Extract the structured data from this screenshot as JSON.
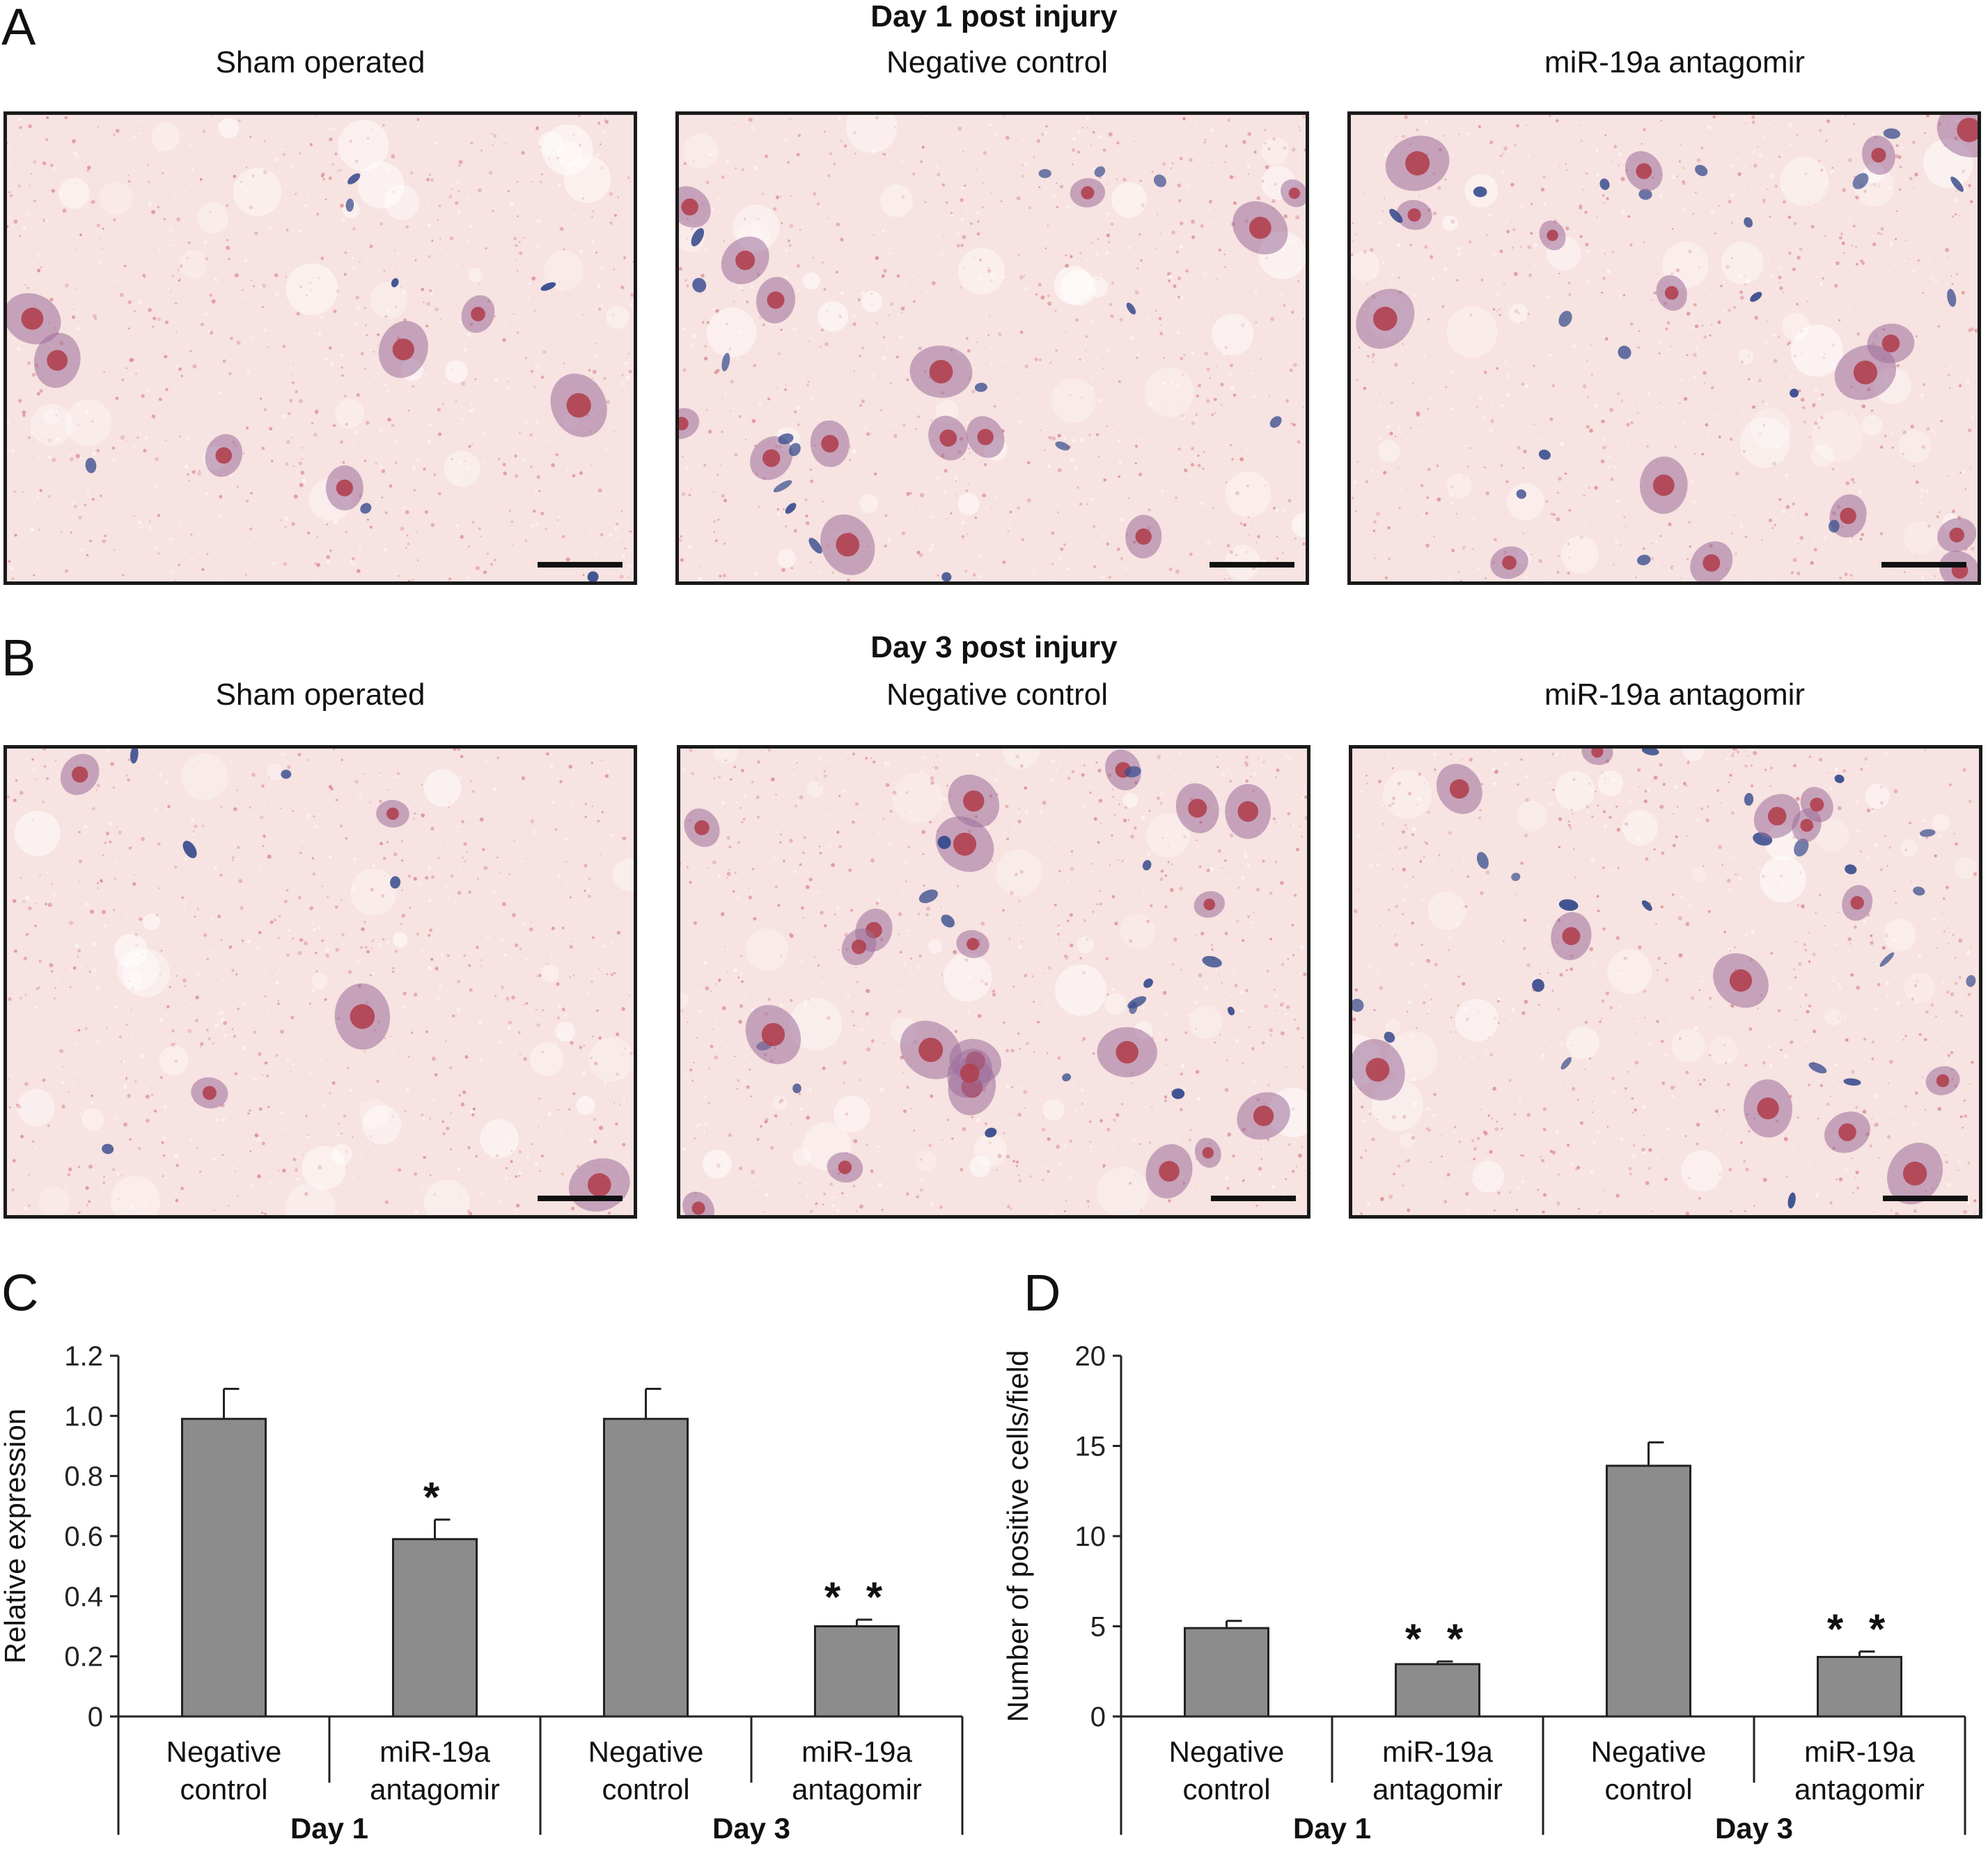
{
  "panels": {
    "A": {
      "letter": "A",
      "title": "Day 1 post injury",
      "columns": [
        "Sham operated",
        "Negative control",
        "miR-19a antagomir"
      ]
    },
    "B": {
      "letter": "B",
      "title": "Day 3 post injury",
      "columns": [
        "Sham operated",
        "Negative control",
        "miR-19a antagomir"
      ]
    },
    "C": {
      "letter": "C"
    },
    "D": {
      "letter": "D"
    }
  },
  "colors": {
    "bar_fill": "#8c8c8c",
    "tissue_bg": "#f7e3e1",
    "stain_red": "#b04050",
    "stain_blue": "#3b4f8f"
  },
  "chart_data": [
    {
      "type": "bar",
      "panel": "C",
      "ylabel": "Relative expression",
      "ylim": [
        0,
        1.2
      ],
      "yticks": [
        "0",
        "0.2",
        "0.4",
        "0.6",
        "0.8",
        "1.0",
        "1.2"
      ],
      "categories": [
        {
          "line1": "Negative",
          "line2": "control",
          "group": "Day 1"
        },
        {
          "line1": "miR-19a",
          "line2": "antagomir",
          "group": "Day 1"
        },
        {
          "line1": "Negative",
          "line2": "control",
          "group": "Day 3"
        },
        {
          "line1": "miR-19a",
          "line2": "antagomir",
          "group": "Day 3"
        }
      ],
      "groups": [
        "Day 1",
        "Day 3"
      ],
      "values": [
        0.99,
        0.59,
        0.99,
        0.3
      ],
      "errors": [
        0.1,
        0.065,
        0.1,
        0.022
      ],
      "significance": [
        "",
        "*",
        "",
        "**"
      ]
    },
    {
      "type": "bar",
      "panel": "D",
      "ylabel": "Number of positive cells/field",
      "ylim": [
        0,
        20
      ],
      "yticks": [
        "0",
        "5",
        "10",
        "15",
        "20"
      ],
      "categories": [
        {
          "line1": "Negative",
          "line2": "control",
          "group": "Day 1"
        },
        {
          "line1": "miR-19a",
          "line2": "antagomir",
          "group": "Day 1"
        },
        {
          "line1": "Negative",
          "line2": "control",
          "group": "Day 3"
        },
        {
          "line1": "miR-19a",
          "line2": "antagomir",
          "group": "Day 3"
        }
      ],
      "groups": [
        "Day 1",
        "Day 3"
      ],
      "values": [
        4.9,
        2.9,
        13.9,
        3.3
      ],
      "errors": [
        0.4,
        0.15,
        1.3,
        0.3
      ],
      "significance": [
        "",
        "**",
        "",
        "**"
      ]
    }
  ]
}
